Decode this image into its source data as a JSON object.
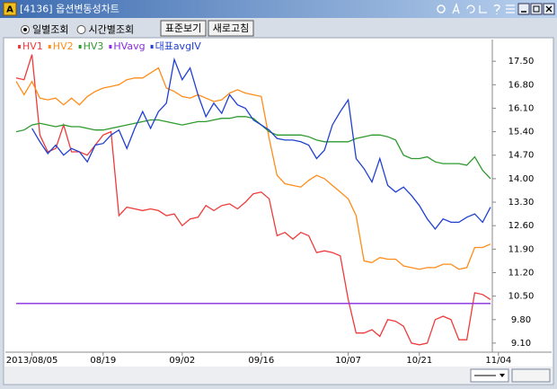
{
  "window": {
    "icon_label": "A",
    "title": "[4136] 옵션변동성차트"
  },
  "toolbar": {
    "radios": [
      {
        "label": "일별조회",
        "checked": true
      },
      {
        "label": "시간별조회",
        "checked": false
      }
    ],
    "buttons": [
      "표준보기",
      "새로고침"
    ]
  },
  "chart_data": {
    "type": "line",
    "categories": [
      null,
      null,
      "2013/08/05",
      null,
      null,
      null,
      null,
      null,
      null,
      null,
      null,
      "08/19",
      null,
      null,
      null,
      null,
      null,
      null,
      null,
      null,
      null,
      "09/02",
      null,
      null,
      null,
      null,
      null,
      null,
      null,
      null,
      null,
      "09/16",
      null,
      null,
      null,
      null,
      null,
      null,
      null,
      null,
      null,
      null,
      "10/07",
      null,
      null,
      null,
      null,
      null,
      null,
      null,
      null,
      "10/21",
      null,
      null,
      null,
      null,
      null,
      null,
      null,
      null,
      null,
      "11/04"
    ],
    "series": [
      {
        "name": "HV1",
        "color": "#ee3b3b",
        "values": [
          17.0,
          16.95,
          17.7,
          15.3,
          14.8,
          14.9,
          15.6,
          14.8,
          14.8,
          14.7,
          15.0,
          15.3,
          15.4,
          12.9,
          13.15,
          13.1,
          13.05,
          13.1,
          13.05,
          12.9,
          12.95,
          12.6,
          12.8,
          12.85,
          13.2,
          13.05,
          13.2,
          13.25,
          13.1,
          13.3,
          13.55,
          13.6,
          13.4,
          12.3,
          12.4,
          12.2,
          12.4,
          12.3,
          11.8,
          11.85,
          11.8,
          11.7,
          10.4,
          9.4,
          9.4,
          9.5,
          9.3,
          9.8,
          9.75,
          9.6,
          9.1,
          9.05,
          9.1,
          9.8,
          9.9,
          9.8,
          9.2,
          9.2,
          10.6,
          10.55,
          10.4,
          null
        ]
      },
      {
        "name": "HV2",
        "color": "#ff8c1a",
        "values": [
          16.9,
          16.5,
          16.9,
          16.4,
          16.35,
          16.4,
          16.2,
          16.4,
          16.2,
          16.45,
          16.6,
          16.7,
          16.75,
          16.8,
          16.95,
          17.0,
          17.0,
          17.15,
          17.3,
          16.7,
          16.6,
          16.45,
          16.4,
          16.5,
          16.4,
          16.3,
          16.35,
          16.55,
          16.65,
          16.55,
          16.5,
          16.45,
          15.2,
          14.1,
          13.85,
          13.8,
          13.75,
          13.95,
          14.1,
          14.0,
          13.8,
          13.6,
          13.4,
          12.9,
          11.55,
          11.5,
          11.65,
          11.6,
          11.6,
          11.4,
          11.35,
          11.3,
          11.35,
          11.35,
          11.45,
          11.45,
          11.3,
          11.35,
          11.95,
          11.95,
          12.05,
          null
        ]
      },
      {
        "name": "HV3",
        "color": "#2e9a2e",
        "values": [
          15.4,
          15.45,
          15.6,
          15.65,
          15.6,
          15.55,
          15.6,
          15.55,
          15.55,
          15.5,
          15.45,
          15.45,
          15.5,
          15.55,
          15.6,
          15.65,
          15.7,
          15.75,
          15.75,
          15.7,
          15.65,
          15.6,
          15.65,
          15.7,
          15.7,
          15.75,
          15.8,
          15.8,
          15.85,
          15.85,
          15.8,
          15.6,
          15.4,
          15.3,
          15.3,
          15.3,
          15.3,
          15.25,
          15.15,
          15.1,
          15.1,
          15.1,
          15.1,
          15.2,
          15.25,
          15.3,
          15.3,
          15.25,
          15.15,
          14.7,
          14.6,
          14.6,
          14.65,
          14.5,
          14.45,
          14.45,
          14.45,
          14.4,
          14.65,
          14.25,
          14.0,
          null
        ]
      },
      {
        "name": "HVavg",
        "color": "#8a2be2",
        "values": [
          10.28,
          10.28,
          10.28,
          10.28,
          10.28,
          10.28,
          10.28,
          10.28,
          10.28,
          10.28,
          10.28,
          10.28,
          10.28,
          10.28,
          10.28,
          10.28,
          10.28,
          10.28,
          10.28,
          10.28,
          10.28,
          10.28,
          10.28,
          10.28,
          10.28,
          10.28,
          10.28,
          10.28,
          10.28,
          10.28,
          10.28,
          10.28,
          10.28,
          10.28,
          10.28,
          10.28,
          10.28,
          10.28,
          10.28,
          10.28,
          10.28,
          10.28,
          10.28,
          10.28,
          10.28,
          10.28,
          10.28,
          10.28,
          10.28,
          10.28,
          10.28,
          10.28,
          10.28,
          10.28,
          10.28,
          10.28,
          10.28,
          10.28,
          10.28,
          10.28,
          10.28,
          null
        ]
      },
      {
        "name": "대표avgIV",
        "color": "#2040d0",
        "values": [
          null,
          null,
          15.5,
          15.1,
          14.75,
          15.0,
          14.7,
          14.9,
          14.8,
          14.5,
          15.0,
          15.05,
          15.3,
          15.45,
          14.9,
          15.5,
          16.0,
          15.5,
          16.0,
          16.25,
          17.55,
          16.95,
          17.3,
          16.5,
          15.85,
          16.25,
          15.95,
          16.5,
          16.2,
          16.1,
          15.75,
          15.6,
          15.45,
          15.2,
          15.15,
          15.15,
          15.1,
          15.0,
          14.6,
          14.85,
          15.6,
          16.0,
          16.35,
          14.6,
          14.3,
          13.9,
          14.6,
          13.8,
          13.6,
          13.75,
          13.5,
          13.2,
          12.8,
          12.5,
          12.8,
          12.7,
          12.7,
          12.85,
          12.95,
          12.7,
          13.15,
          null
        ]
      }
    ],
    "ylim": [
      8.83,
      18.12
    ],
    "yticks": [
      {
        "value": 9.1,
        "label": "9.10"
      },
      {
        "value": 9.8,
        "label": "9.80"
      },
      {
        "value": 10.5,
        "label": "10.50"
      },
      {
        "value": 11.2,
        "label": "11.20"
      },
      {
        "value": 11.9,
        "label": "11.90"
      },
      {
        "value": 12.6,
        "label": "12.60"
      },
      {
        "value": 13.3,
        "label": "13.30"
      },
      {
        "value": 14.0,
        "label": "14.00"
      },
      {
        "value": 14.7,
        "label": "14.70"
      },
      {
        "value": 15.4,
        "label": "15.40"
      },
      {
        "value": 16.1,
        "label": "16.10"
      },
      {
        "value": 16.8,
        "label": "16.80"
      },
      {
        "value": 17.5,
        "label": "17.50"
      }
    ],
    "yaxis_side": "right",
    "grid": false,
    "legend": "top-left"
  }
}
